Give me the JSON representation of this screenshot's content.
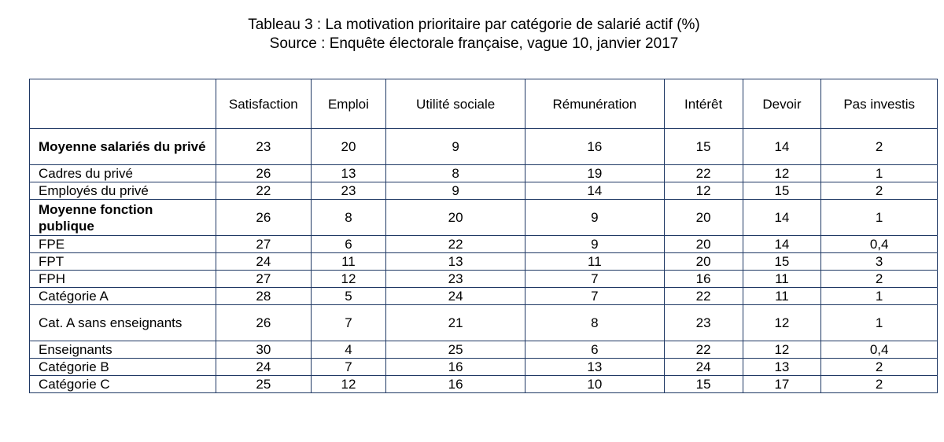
{
  "title": {
    "line1": "Tableau 3 : La motivation prioritaire par catégorie de salarié actif (%)",
    "line2": "Source : Enquête électorale française, vague 10, janvier 2017"
  },
  "table": {
    "corner": "",
    "columns": [
      "Satisfaction",
      "Emploi",
      "Utilité sociale",
      "Rémunération",
      "Intérêt",
      "Devoir",
      "Pas investis"
    ],
    "rows": [
      {
        "label": "Moyenne salariés du privé",
        "bold": true,
        "tall": true,
        "values": [
          "23",
          "20",
          "9",
          "16",
          "15",
          "14",
          "2"
        ]
      },
      {
        "label": "Cadres du privé",
        "bold": false,
        "tall": false,
        "values": [
          "26",
          "13",
          "8",
          "19",
          "22",
          "12",
          "1"
        ]
      },
      {
        "label": "Employés du privé",
        "bold": false,
        "tall": false,
        "values": [
          "22",
          "23",
          "9",
          "14",
          "12",
          "15",
          "2"
        ]
      },
      {
        "label": "Moyenne fonction publique",
        "bold": true,
        "tall": true,
        "values": [
          "26",
          "8",
          "20",
          "9",
          "20",
          "14",
          "1"
        ]
      },
      {
        "label": "FPE",
        "bold": false,
        "tall": false,
        "values": [
          "27",
          "6",
          "22",
          "9",
          "20",
          "14",
          "0,4"
        ]
      },
      {
        "label": "FPT",
        "bold": false,
        "tall": false,
        "values": [
          "24",
          "11",
          "13",
          "11",
          "20",
          "15",
          "3"
        ]
      },
      {
        "label": "FPH",
        "bold": false,
        "tall": false,
        "values": [
          "27",
          "12",
          "23",
          "7",
          "16",
          "11",
          "2"
        ]
      },
      {
        "label": "Catégorie A",
        "bold": false,
        "tall": false,
        "values": [
          "28",
          "5",
          "24",
          "7",
          "22",
          "11",
          "1"
        ]
      },
      {
        "label": "Cat. A sans enseignants",
        "bold": false,
        "tall": true,
        "values": [
          "26",
          "7",
          "21",
          "8",
          "23",
          "12",
          "1"
        ]
      },
      {
        "label": "Enseignants",
        "bold": false,
        "tall": false,
        "values": [
          "30",
          "4",
          "25",
          "6",
          "22",
          "12",
          "0,4"
        ]
      },
      {
        "label": "Catégorie B",
        "bold": false,
        "tall": false,
        "values": [
          "24",
          "7",
          "16",
          "13",
          "24",
          "13",
          "2"
        ]
      },
      {
        "label": "Catégorie C",
        "bold": false,
        "tall": false,
        "values": [
          "25",
          "12",
          "16",
          "10",
          "15",
          "17",
          "2"
        ]
      }
    ]
  },
  "colors": {
    "border": "#1f3864",
    "text": "#000000",
    "background": "#ffffff"
  }
}
